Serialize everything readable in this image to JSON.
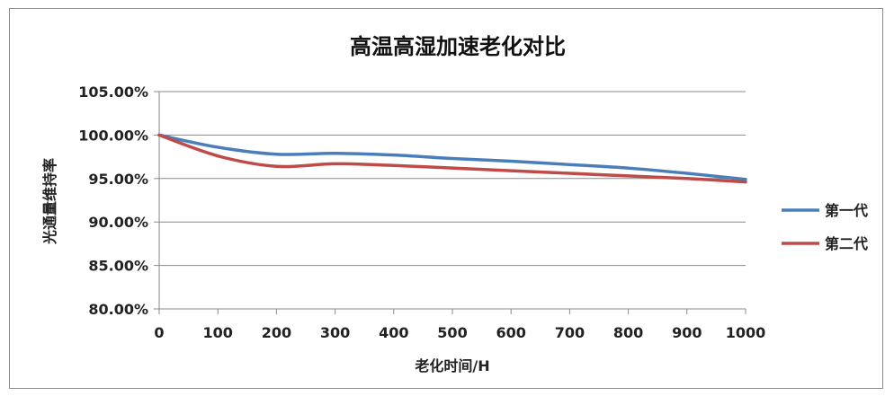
{
  "chart_data": {
    "type": "line",
    "title": "高温高湿加速老化对比",
    "xlabel": "老化时间/H",
    "ylabel": "光通量维持率",
    "x": [
      0,
      100,
      200,
      300,
      400,
      500,
      600,
      700,
      800,
      900,
      1000
    ],
    "x_tick_labels": [
      "0",
      "100",
      "200",
      "300",
      "400",
      "500",
      "600",
      "700",
      "800",
      "900",
      "1000"
    ],
    "y_tick_labels": [
      "80.00%",
      "85.00%",
      "90.00%",
      "95.00%",
      "100.00%",
      "105.00%"
    ],
    "xlim": [
      0,
      1000
    ],
    "ylim": [
      80,
      105
    ],
    "y_unit": "%",
    "grid": "horizontal",
    "legend_position": "right",
    "series": [
      {
        "name": "第一代",
        "color": "#4a7ebb",
        "values": [
          100.0,
          98.6,
          97.8,
          97.9,
          97.7,
          97.3,
          97.0,
          96.6,
          96.2,
          95.6,
          94.9
        ]
      },
      {
        "name": "第二代",
        "color": "#be4b48",
        "values": [
          100.0,
          97.6,
          96.4,
          96.7,
          96.5,
          96.2,
          95.9,
          95.6,
          95.3,
          95.0,
          94.6
        ]
      }
    ]
  }
}
